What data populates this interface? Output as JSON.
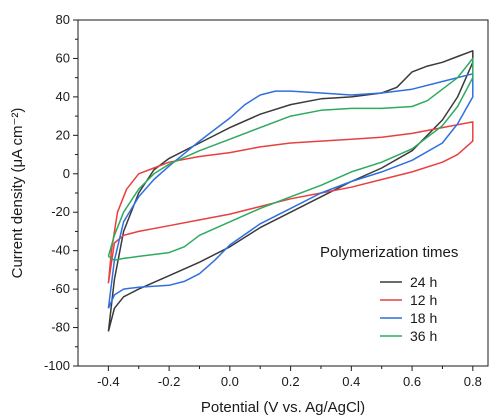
{
  "chart_data": {
    "type": "line",
    "xlabel": "Potential (V vs. Ag/AgCl)",
    "ylabel": "Current density (μA cm⁻²)",
    "xlim": [
      -0.5,
      0.85
    ],
    "ylim": [
      -100,
      80
    ],
    "x_ticks": [
      -0.4,
      -0.2,
      0.0,
      0.2,
      0.4,
      0.6,
      0.8
    ],
    "x_tick_labels": [
      "-0.4",
      "-0.2",
      "0.0",
      "0.2",
      "0.4",
      "0.6",
      "0.8"
    ],
    "y_ticks": [
      -100,
      -80,
      -60,
      -40,
      -20,
      0,
      20,
      40,
      60,
      80
    ],
    "y_tick_labels": [
      "-100",
      "-80",
      "-60",
      "-40",
      "-20",
      "0",
      "20",
      "40",
      "60",
      "80"
    ],
    "legend_title": "Polymerization times",
    "legend_placement": "bottom-right",
    "grid": false,
    "series": [
      {
        "name": "24 h",
        "color": "#3a3a3a",
        "x": [
          -0.4,
          -0.38,
          -0.35,
          -0.3,
          -0.25,
          -0.2,
          -0.1,
          0.0,
          0.1,
          0.2,
          0.3,
          0.4,
          0.5,
          0.55,
          0.6,
          0.65,
          0.7,
          0.75,
          0.8,
          0.8,
          0.75,
          0.7,
          0.6,
          0.5,
          0.4,
          0.3,
          0.2,
          0.1,
          0.0,
          -0.1,
          -0.2,
          -0.3,
          -0.35,
          -0.38,
          -0.4
        ],
        "y": [
          -82,
          -55,
          -30,
          -10,
          2,
          8,
          16,
          24,
          31,
          36,
          39,
          40,
          42,
          45,
          53,
          56,
          58,
          61,
          64,
          58,
          40,
          28,
          12,
          3,
          -4,
          -12,
          -20,
          -28,
          -38,
          -46,
          -53,
          -60,
          -64,
          -70,
          -82
        ]
      },
      {
        "name": "12 h",
        "color": "#e8403f",
        "x": [
          -0.4,
          -0.39,
          -0.37,
          -0.34,
          -0.3,
          -0.25,
          -0.2,
          -0.1,
          0.0,
          0.1,
          0.2,
          0.3,
          0.4,
          0.5,
          0.6,
          0.7,
          0.8,
          0.8,
          0.75,
          0.7,
          0.6,
          0.5,
          0.4,
          0.3,
          0.2,
          0.1,
          0.0,
          -0.1,
          -0.2,
          -0.3,
          -0.35,
          -0.38,
          -0.4
        ],
        "y": [
          -57,
          -40,
          -20,
          -8,
          0,
          3,
          6,
          9,
          11,
          14,
          16,
          17,
          18,
          19,
          21,
          24,
          27,
          17,
          10,
          6,
          1,
          -3,
          -7,
          -10,
          -13,
          -17,
          -21,
          -24,
          -27,
          -30,
          -32,
          -36,
          -57
        ]
      },
      {
        "name": "18 h",
        "color": "#2f6fe0",
        "x": [
          -0.4,
          -0.38,
          -0.35,
          -0.3,
          -0.25,
          -0.2,
          -0.1,
          0.0,
          0.05,
          0.1,
          0.15,
          0.2,
          0.3,
          0.4,
          0.5,
          0.6,
          0.7,
          0.8,
          0.8,
          0.75,
          0.7,
          0.6,
          0.5,
          0.4,
          0.3,
          0.2,
          0.1,
          0.0,
          -0.05,
          -0.1,
          -0.15,
          -0.2,
          -0.3,
          -0.35,
          -0.38,
          -0.4
        ],
        "y": [
          -70,
          -45,
          -25,
          -12,
          -3,
          4,
          17,
          29,
          36,
          41,
          43,
          43,
          42,
          41,
          42,
          44,
          48,
          52,
          40,
          26,
          16,
          7,
          1,
          -4,
          -10,
          -18,
          -26,
          -37,
          -45,
          -52,
          -56,
          -58,
          -59,
          -60,
          -63,
          -70
        ]
      },
      {
        "name": "36 h",
        "color": "#2daa60",
        "x": [
          -0.4,
          -0.38,
          -0.35,
          -0.3,
          -0.25,
          -0.2,
          -0.1,
          0.0,
          0.1,
          0.2,
          0.3,
          0.4,
          0.5,
          0.6,
          0.65,
          0.7,
          0.75,
          0.8,
          0.8,
          0.75,
          0.7,
          0.6,
          0.5,
          0.4,
          0.3,
          0.2,
          0.1,
          0.0,
          -0.1,
          -0.15,
          -0.2,
          -0.3,
          -0.35,
          -0.38,
          -0.4
        ],
        "y": [
          -43,
          -32,
          -20,
          -8,
          0,
          5,
          12,
          18,
          24,
          30,
          33,
          34,
          34,
          35,
          38,
          44,
          50,
          60,
          50,
          35,
          25,
          13,
          6,
          1,
          -6,
          -12,
          -18,
          -25,
          -32,
          -38,
          -41,
          -43,
          -44,
          -45,
          -43
        ]
      }
    ]
  }
}
